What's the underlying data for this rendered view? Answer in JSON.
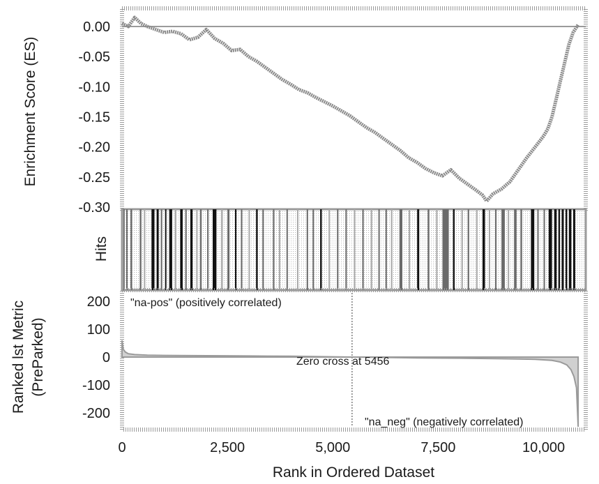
{
  "colors": {
    "es_line": "#8a8a8a",
    "frame": "#8a8a8a",
    "hit_dark": "#111111",
    "hit_mid": "#6a6a6a",
    "hit_light": "#a8a8a8",
    "metric_fill": "#d0d0d0",
    "background": "#ffffff"
  },
  "chart_data": [
    {
      "id": "enrichment",
      "type": "line",
      "ylabel": "Enrichment Score (ES)",
      "ylim": [
        -0.3,
        0.02
      ],
      "xlim": [
        0,
        11000
      ],
      "yticks": [
        0.0,
        -0.05,
        -0.1,
        -0.15,
        -0.2,
        -0.25,
        -0.3
      ],
      "ytick_labels": [
        "0.00",
        "-0.05",
        "-0.10",
        "-0.15",
        "-0.20",
        "-0.25",
        "-0.30"
      ],
      "zero_line": 0.0,
      "series": [
        {
          "x": [
            0,
            150,
            300,
            450,
            600,
            800,
            1000,
            1200,
            1400,
            1600,
            1800,
            2000,
            2200,
            2400,
            2600,
            2800,
            3000,
            3200,
            3400,
            3600,
            3800,
            4000,
            4200,
            4400,
            4600,
            4800,
            5000,
            5200,
            5400,
            5600,
            5800,
            6000,
            6200,
            6400,
            6600,
            6800,
            7000,
            7200,
            7400,
            7600,
            7800,
            8000,
            8200,
            8400,
            8550,
            8650,
            8800,
            9000,
            9200,
            9400,
            9600,
            9800,
            10000,
            10100,
            10200,
            10300,
            10400,
            10500,
            10600,
            10700,
            10820
          ],
          "y": [
            0.005,
            0.0,
            0.015,
            0.005,
            0.0,
            -0.005,
            -0.01,
            -0.008,
            -0.012,
            -0.022,
            -0.018,
            -0.005,
            -0.02,
            -0.028,
            -0.04,
            -0.038,
            -0.05,
            -0.058,
            -0.068,
            -0.078,
            -0.088,
            -0.096,
            -0.105,
            -0.11,
            -0.118,
            -0.125,
            -0.132,
            -0.14,
            -0.148,
            -0.158,
            -0.168,
            -0.176,
            -0.186,
            -0.196,
            -0.206,
            -0.218,
            -0.226,
            -0.236,
            -0.243,
            -0.248,
            -0.238,
            -0.252,
            -0.262,
            -0.272,
            -0.28,
            -0.29,
            -0.278,
            -0.27,
            -0.258,
            -0.238,
            -0.218,
            -0.2,
            -0.182,
            -0.17,
            -0.15,
            -0.12,
            -0.09,
            -0.06,
            -0.03,
            -0.01,
            0.003
          ]
        }
      ]
    },
    {
      "id": "hits",
      "type": "bar",
      "ylabel": "Hits",
      "xlim": [
        0,
        11000
      ],
      "hits": [
        {
          "x": 30,
          "w": 20,
          "tone": "mid"
        },
        {
          "x": 100,
          "w": 30,
          "tone": "mid"
        },
        {
          "x": 200,
          "w": 40,
          "tone": "mid"
        },
        {
          "x": 420,
          "w": 40,
          "tone": "mid"
        },
        {
          "x": 520,
          "w": 30,
          "tone": "light"
        },
        {
          "x": 700,
          "w": 70,
          "tone": "dark"
        },
        {
          "x": 820,
          "w": 50,
          "tone": "dark"
        },
        {
          "x": 920,
          "w": 35,
          "tone": "mid"
        },
        {
          "x": 1020,
          "w": 30,
          "tone": "dark"
        },
        {
          "x": 1120,
          "w": 70,
          "tone": "dark"
        },
        {
          "x": 1250,
          "w": 40,
          "tone": "light"
        },
        {
          "x": 1380,
          "w": 60,
          "tone": "dark"
        },
        {
          "x": 1500,
          "w": 30,
          "tone": "mid"
        },
        {
          "x": 1620,
          "w": 55,
          "tone": "dark"
        },
        {
          "x": 1760,
          "w": 30,
          "tone": "light"
        },
        {
          "x": 1850,
          "w": 40,
          "tone": "mid"
        },
        {
          "x": 2020,
          "w": 25,
          "tone": "mid"
        },
        {
          "x": 2150,
          "w": 90,
          "tone": "dark"
        },
        {
          "x": 2350,
          "w": 40,
          "tone": "light"
        },
        {
          "x": 2500,
          "w": 50,
          "tone": "mid"
        },
        {
          "x": 2680,
          "w": 35,
          "tone": "dark"
        },
        {
          "x": 2820,
          "w": 30,
          "tone": "mid"
        },
        {
          "x": 3000,
          "w": 30,
          "tone": "light"
        },
        {
          "x": 3180,
          "w": 40,
          "tone": "dark"
        },
        {
          "x": 3330,
          "w": 30,
          "tone": "mid"
        },
        {
          "x": 3580,
          "w": 35,
          "tone": "mid"
        },
        {
          "x": 3720,
          "w": 30,
          "tone": "light"
        },
        {
          "x": 3900,
          "w": 25,
          "tone": "mid"
        },
        {
          "x": 4150,
          "w": 30,
          "tone": "light"
        },
        {
          "x": 4380,
          "w": 25,
          "tone": "mid"
        },
        {
          "x": 4520,
          "w": 30,
          "tone": "mid"
        },
        {
          "x": 4700,
          "w": 40,
          "tone": "dark"
        },
        {
          "x": 4900,
          "w": 25,
          "tone": "light"
        },
        {
          "x": 5100,
          "w": 30,
          "tone": "mid"
        },
        {
          "x": 5300,
          "w": 30,
          "tone": "mid"
        },
        {
          "x": 5500,
          "w": 25,
          "tone": "light"
        },
        {
          "x": 5700,
          "w": 30,
          "tone": "mid"
        },
        {
          "x": 5900,
          "w": 25,
          "tone": "light"
        },
        {
          "x": 6080,
          "w": 30,
          "tone": "mid"
        },
        {
          "x": 6250,
          "w": 25,
          "tone": "mid"
        },
        {
          "x": 6380,
          "w": 25,
          "tone": "light"
        },
        {
          "x": 6580,
          "w": 70,
          "tone": "mid"
        },
        {
          "x": 6800,
          "w": 30,
          "tone": "light"
        },
        {
          "x": 7000,
          "w": 50,
          "tone": "dark"
        },
        {
          "x": 7250,
          "w": 40,
          "tone": "mid"
        },
        {
          "x": 7450,
          "w": 30,
          "tone": "light"
        },
        {
          "x": 7600,
          "w": 150,
          "tone": "mid"
        },
        {
          "x": 7850,
          "w": 40,
          "tone": "dark"
        },
        {
          "x": 8050,
          "w": 30,
          "tone": "light"
        },
        {
          "x": 8200,
          "w": 35,
          "tone": "mid"
        },
        {
          "x": 8400,
          "w": 30,
          "tone": "light"
        },
        {
          "x": 8550,
          "w": 60,
          "tone": "dark"
        },
        {
          "x": 8700,
          "w": 30,
          "tone": "light"
        },
        {
          "x": 8850,
          "w": 35,
          "tone": "mid"
        },
        {
          "x": 9000,
          "w": 80,
          "tone": "mid"
        },
        {
          "x": 9150,
          "w": 30,
          "tone": "light"
        },
        {
          "x": 9300,
          "w": 60,
          "tone": "mid"
        },
        {
          "x": 9450,
          "w": 40,
          "tone": "mid"
        },
        {
          "x": 9700,
          "w": 80,
          "tone": "dark"
        },
        {
          "x": 9850,
          "w": 30,
          "tone": "mid"
        },
        {
          "x": 10000,
          "w": 30,
          "tone": "mid"
        },
        {
          "x": 10120,
          "w": 80,
          "tone": "dark"
        },
        {
          "x": 10250,
          "w": 60,
          "tone": "dark"
        },
        {
          "x": 10350,
          "w": 40,
          "tone": "dark"
        },
        {
          "x": 10430,
          "w": 50,
          "tone": "dark"
        },
        {
          "x": 10520,
          "w": 40,
          "tone": "dark"
        },
        {
          "x": 10600,
          "w": 60,
          "tone": "dark"
        },
        {
          "x": 10700,
          "w": 50,
          "tone": "dark"
        }
      ]
    },
    {
      "id": "ranked-metric",
      "type": "area",
      "xlabel": "Rank in Ordered Dataset",
      "ylabel_lines": [
        "Ranked lst Metric",
        "(PreParked)"
      ],
      "ylim": [
        -250,
        230
      ],
      "xlim": [
        0,
        11000
      ],
      "yticks": [
        200,
        100,
        0,
        -100,
        -200
      ],
      "ytick_labels": [
        "200",
        "100",
        "0",
        "-100",
        "-200"
      ],
      "xticks": [
        0,
        2500,
        5000,
        7500,
        10000
      ],
      "xtick_labels": [
        "0",
        "2,500",
        "5,000",
        "7,500",
        "10,000"
      ],
      "zero_cross_rank": 5456,
      "annotations": {
        "positive": "\"na-pos\" (positively correlated)",
        "zero_cross": "Zero cross at 5456",
        "negative": "\"na_neg\" (negatively correlated)"
      },
      "series": [
        {
          "x": [
            0,
            30,
            80,
            150,
            300,
            600,
            1000,
            2000,
            3000,
            4000,
            5000,
            5456,
            6000,
            7000,
            8000,
            9000,
            9800,
            10200,
            10400,
            10550,
            10650,
            10720,
            10780,
            10820
          ],
          "y": [
            60,
            28,
            18,
            12,
            9,
            7,
            6,
            5,
            4,
            3,
            1,
            0,
            -1,
            -3,
            -4,
            -6,
            -8,
            -12,
            -18,
            -28,
            -45,
            -70,
            -110,
            -250
          ]
        }
      ]
    }
  ]
}
